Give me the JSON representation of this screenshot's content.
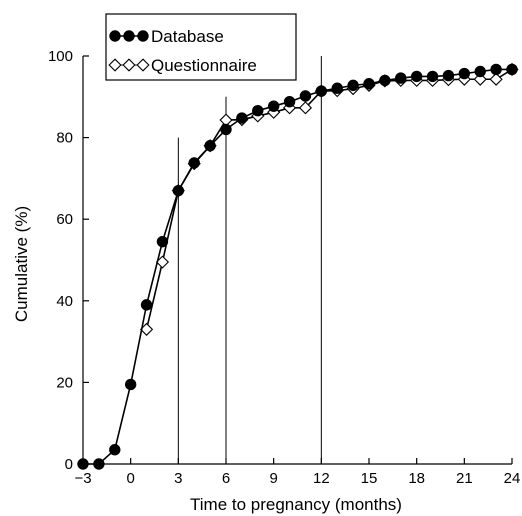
{
  "chart_data": {
    "type": "line",
    "title": "",
    "xlabel": "Time to pregnancy (months)",
    "ylabel": "Cumulative (%)",
    "xlim": [
      -3,
      24
    ],
    "ylim": [
      0,
      100
    ],
    "xticks": [
      -3,
      0,
      3,
      6,
      9,
      12,
      15,
      18,
      21,
      24
    ],
    "xtick_labels": [
      "−3",
      "0",
      "3",
      "6",
      "9",
      "12",
      "15",
      "18",
      "21",
      "24"
    ],
    "yticks": [
      0,
      20,
      40,
      60,
      80,
      100
    ],
    "ytick_labels": [
      "0",
      "20",
      "40",
      "60",
      "80",
      "100"
    ],
    "reference_lines": [
      {
        "x": 3,
        "y_top": 80
      },
      {
        "x": 6,
        "y_top": 90
      },
      {
        "x": 12,
        "y_top": 100
      }
    ],
    "legend_position": "top-left",
    "grid": false,
    "series": [
      {
        "name": "Database",
        "marker": "filled-circle",
        "color": "#000000",
        "x": [
          -3,
          -2,
          -1,
          0,
          1,
          2,
          3,
          4,
          5,
          6,
          7,
          8,
          9,
          10,
          11,
          12,
          13,
          14,
          15,
          16,
          17,
          18,
          19,
          20,
          21,
          22,
          23,
          24
        ],
        "y": [
          0,
          0,
          3.5,
          19.5,
          39,
          54.5,
          67,
          73.8,
          78,
          82,
          84.8,
          86.6,
          87.7,
          88.8,
          90.2,
          91.4,
          92.1,
          92.8,
          93.2,
          94,
          94.6,
          95,
          95,
          95.2,
          95.7,
          96.2,
          96.7,
          96.7
        ]
      },
      {
        "name": "Questionnaire",
        "marker": "open-diamond",
        "color": "#000000",
        "x": [
          1,
          2,
          3,
          4,
          5,
          6,
          7,
          8,
          9,
          10,
          11,
          12,
          13,
          14,
          15,
          16,
          17,
          18,
          19,
          20,
          21,
          22,
          23,
          24
        ],
        "y": [
          33,
          49.5,
          67,
          73.6,
          78,
          84.3,
          84.4,
          85.3,
          86.2,
          87.3,
          87.3,
          91.4,
          91.5,
          92,
          92.8,
          93.9,
          94,
          94,
          94,
          94.2,
          94.3,
          94.3,
          94.3,
          96.7
        ]
      }
    ]
  }
}
